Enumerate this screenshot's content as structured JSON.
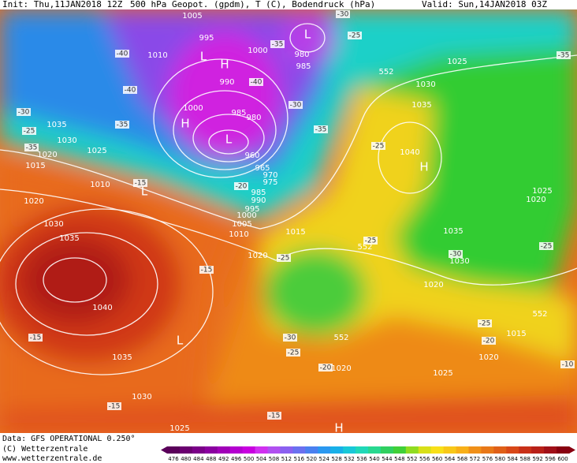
{
  "header": {
    "init": "Init: Thu,11JAN2018 12Z",
    "title": "500 hPa Geopot. (gpdm), T (C), Bodendruck (hPa)",
    "valid": "Valid: Sun,14JAN2018 03Z"
  },
  "footer": {
    "data": "Data: GFS OPERATIONAL 0.250°",
    "copyright": "(C) Wetterzentrale",
    "url": "www.wetterzentrale.de"
  },
  "colorbar": {
    "ticks": [
      476,
      480,
      484,
      488,
      492,
      496,
      500,
      504,
      508,
      512,
      516,
      520,
      524,
      528,
      532,
      536,
      540,
      544,
      548,
      552,
      556,
      560,
      564,
      568,
      572,
      576,
      580,
      584,
      588,
      592,
      596,
      600
    ]
  },
  "pressure_labels": [
    "1005",
    "995",
    "1010",
    "1000",
    "990",
    "1000",
    "985",
    "980",
    "960",
    "965",
    "970",
    "975",
    "985",
    "990",
    "995",
    "1000",
    "1005",
    "1010",
    "1015",
    "1020",
    "1035",
    "1030",
    "1025",
    "1020",
    "1015",
    "1010",
    "1020",
    "1030",
    "1035",
    "1040",
    "1035",
    "1030",
    "1025",
    "1020",
    "1025",
    "1020",
    "1015",
    "1020",
    "1030",
    "1035",
    "1040",
    "1035",
    "1030",
    "1025",
    "1025",
    "1020",
    "980",
    "985",
    "552",
    "552",
    "552",
    "552"
  ],
  "centers": [
    "L",
    "L",
    "H",
    "L",
    "H",
    "L",
    "H",
    "L",
    "H"
  ],
  "temperature_labels": [
    "-30",
    "-25",
    "-35",
    "-40",
    "-40",
    "-40",
    "-35",
    "-30",
    "-35",
    "-30",
    "-25",
    "-35",
    "-35",
    "-15",
    "-25",
    "-25",
    "-25",
    "-30",
    "-25",
    "-15",
    "-15",
    "-30",
    "-25",
    "-20",
    "-25",
    "-20",
    "-10",
    "-15",
    "-15",
    "-20"
  ]
}
